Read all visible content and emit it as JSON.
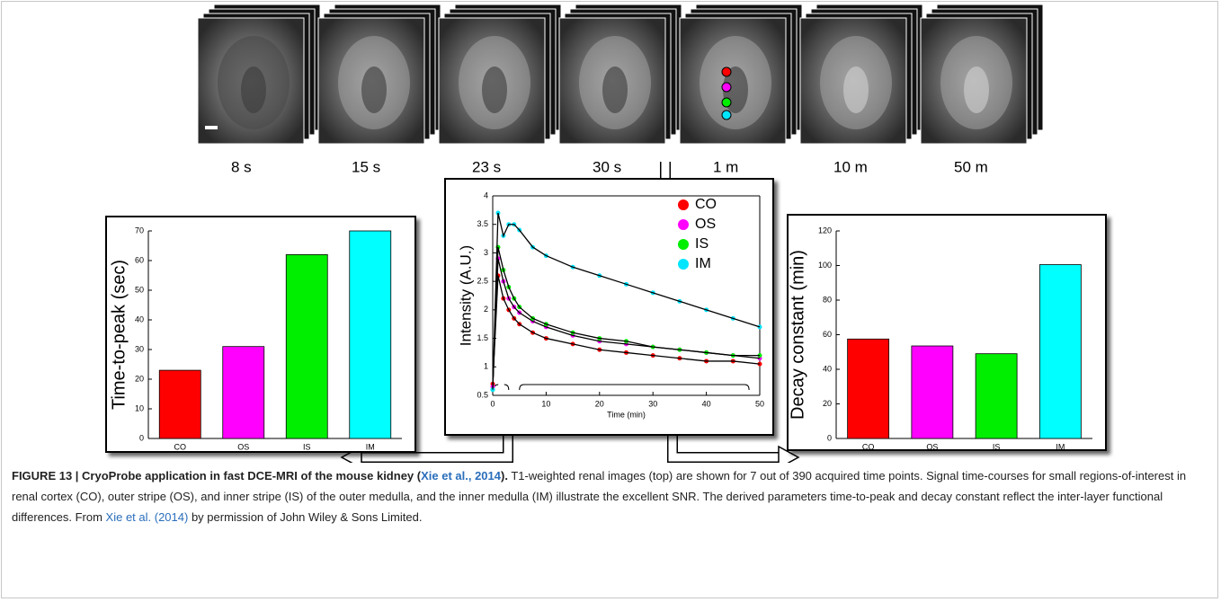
{
  "image_labels": [
    "8 s",
    "15 s",
    "23 s",
    "30 s",
    "1 m",
    "10 m",
    "50 m"
  ],
  "chart_data": [
    {
      "type": "bar",
      "ylabel": "Time-to-peak (sec)",
      "categories": [
        "CO",
        "OS",
        "IS",
        "IM"
      ],
      "values": [
        23,
        31,
        62,
        70
      ],
      "colors": [
        "#ff0000",
        "#ff00ff",
        "#00ee00",
        "#00ffff"
      ],
      "ylim": [
        0,
        70
      ],
      "yticks": [
        0,
        10,
        20,
        30,
        40,
        50,
        60,
        70
      ]
    },
    {
      "type": "line",
      "ylabel": "Intensity (A.U.)",
      "xlabel": "Time (min)",
      "xlim": [
        0,
        50
      ],
      "xticks": [
        0,
        10,
        20,
        30,
        40,
        50
      ],
      "ylim": [
        0.5,
        4
      ],
      "yticks": [
        0.5,
        1,
        1.5,
        2,
        2.5,
        3,
        3.5,
        4
      ],
      "legend": "upper right",
      "line_color": "#000000",
      "x": [
        0,
        1,
        2,
        3,
        4,
        5,
        7.5,
        10,
        15,
        20,
        25,
        30,
        35,
        40,
        45,
        50
      ],
      "series": [
        {
          "name": "CO",
          "color": "#ff0000",
          "values": [
            0.7,
            2.6,
            2.2,
            2.0,
            1.85,
            1.75,
            1.6,
            1.5,
            1.4,
            1.3,
            1.25,
            1.2,
            1.15,
            1.1,
            1.1,
            1.05
          ]
        },
        {
          "name": "OS",
          "color": "#ff00ff",
          "values": [
            0.65,
            2.9,
            2.5,
            2.2,
            2.05,
            1.95,
            1.8,
            1.7,
            1.55,
            1.45,
            1.4,
            1.35,
            1.3,
            1.25,
            1.2,
            1.15
          ]
        },
        {
          "name": "IS",
          "color": "#00ee00",
          "values": [
            0.6,
            3.1,
            2.7,
            2.4,
            2.2,
            2.05,
            1.85,
            1.75,
            1.6,
            1.5,
            1.45,
            1.35,
            1.3,
            1.25,
            1.2,
            1.2
          ]
        },
        {
          "name": "IM",
          "color": "#00e5ff",
          "values": [
            0.6,
            3.7,
            3.3,
            3.5,
            3.5,
            3.4,
            3.1,
            2.95,
            2.75,
            2.6,
            2.45,
            2.3,
            2.15,
            2.0,
            1.85,
            1.7
          ]
        }
      ]
    },
    {
      "type": "bar",
      "ylabel": "Decay constant (min)",
      "categories": [
        "CO",
        "OS",
        "IS",
        "IM"
      ],
      "values": [
        57.5,
        53.5,
        49,
        100.5
      ],
      "colors": [
        "#ff0000",
        "#ff00ff",
        "#00ee00",
        "#00ffff"
      ],
      "ylim": [
        0,
        120
      ],
      "yticks": [
        0,
        20,
        40,
        60,
        80,
        100,
        120
      ]
    }
  ],
  "caption": {
    "bold": "FIGURE 13 | CryoProbe application in fast DCE-MRI of the mouse kidney (",
    "bold_link": "Xie et al., 2014",
    "bold_end": ").",
    "text": "T1-weighted renal images (top) are shown for 7 out of 390 acquired time points. Signal time-courses for small regions-of-interest in renal cortex (CO), outer stripe (OS), and inner stripe (IS) of the outer medulla, and the inner medulla (IM) illustrate the excellent SNR. The derived parameters time-to-peak and decay constant reflect the inter-layer functional differences. From",
    "link": "Xie et al. (2014)",
    "text_end": "by permission of John Wiley & Sons Limited."
  }
}
